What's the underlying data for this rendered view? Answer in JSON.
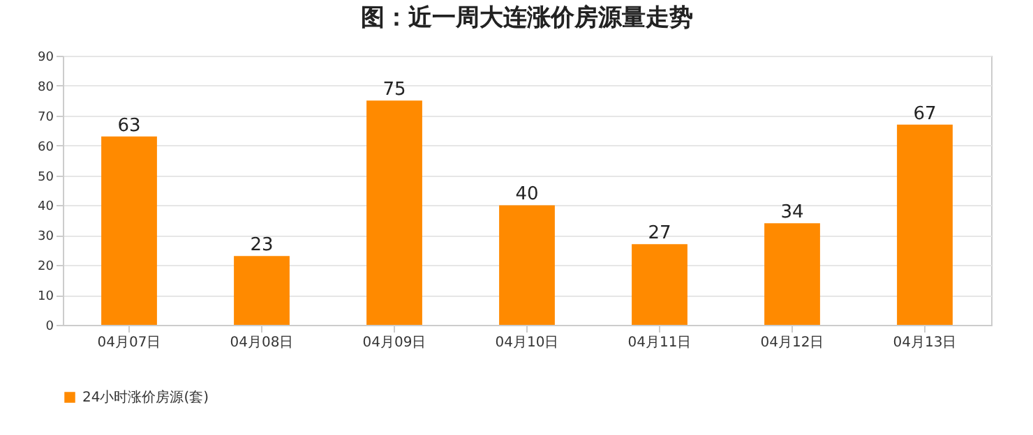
{
  "chart_data": {
    "type": "bar",
    "title": "图：近一周大连涨价房源量走势",
    "categories": [
      "04月07日",
      "04月08日",
      "04月09日",
      "04月10日",
      "04月11日",
      "04月12日",
      "04月13日"
    ],
    "series": [
      {
        "name": "24小时涨价房源(套)",
        "color": "#ff8a00",
        "values": [
          63,
          23,
          75,
          40,
          27,
          34,
          67
        ]
      }
    ],
    "ylim": [
      0,
      90
    ],
    "yticks": [
      0,
      10,
      20,
      30,
      40,
      50,
      60,
      70,
      80,
      90
    ],
    "grid": "y",
    "legend": "bottom",
    "data_labels": true
  }
}
